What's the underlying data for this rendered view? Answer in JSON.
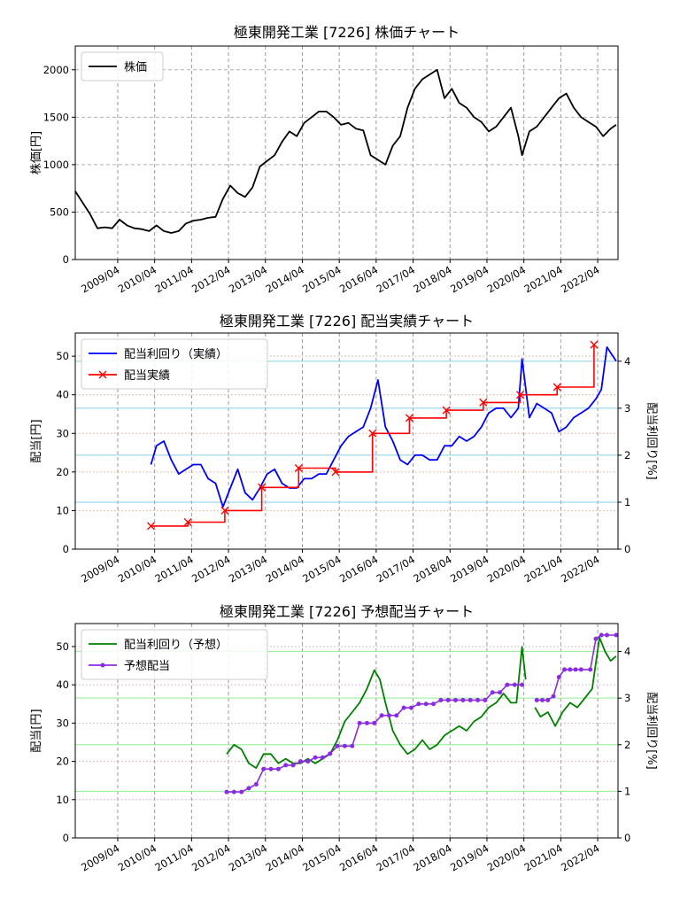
{
  "chart_data": [
    {
      "type": "line",
      "title": "極東開発工業 [7226]  株価チャート",
      "xlabel": "",
      "ylabel": "株価[円]",
      "ylim": [
        0,
        2250
      ],
      "xlim": [
        2008.1,
        2022.8
      ],
      "y_ticks": [
        0,
        500,
        1000,
        1500,
        2000
      ],
      "x_tick_labels": [
        "2009/04",
        "2010/04",
        "2011/04",
        "2012/04",
        "2013/04",
        "2014/04",
        "2015/04",
        "2016/04",
        "2017/04",
        "2018/04",
        "2019/04",
        "2020/04",
        "2021/04",
        "2022/04"
      ],
      "x_tick_values": [
        2009.25,
        2010.25,
        2011.25,
        2012.25,
        2013.25,
        2014.25,
        2015.25,
        2016.25,
        2017.25,
        2018.25,
        2019.25,
        2020.25,
        2021.25,
        2022.25
      ],
      "grid": true,
      "legend_position": "top-left",
      "series": [
        {
          "name": "株価",
          "color": "#000000",
          "x": [
            2008.1,
            2008.3,
            2008.5,
            2008.7,
            2008.9,
            2009.1,
            2009.3,
            2009.5,
            2009.7,
            2009.9,
            2010.1,
            2010.3,
            2010.5,
            2010.7,
            2010.9,
            2011.1,
            2011.3,
            2011.5,
            2011.7,
            2011.9,
            2012.1,
            2012.3,
            2012.5,
            2012.7,
            2012.9,
            2013.1,
            2013.3,
            2013.5,
            2013.7,
            2013.9,
            2014.1,
            2014.3,
            2014.5,
            2014.7,
            2014.9,
            2015.1,
            2015.3,
            2015.5,
            2015.7,
            2015.9,
            2016.1,
            2016.3,
            2016.5,
            2016.7,
            2016.9,
            2017.1,
            2017.3,
            2017.5,
            2017.7,
            2017.9,
            2018.1,
            2018.3,
            2018.5,
            2018.7,
            2018.9,
            2019.1,
            2019.3,
            2019.5,
            2019.7,
            2019.9,
            2020.1,
            2020.2,
            2020.4,
            2020.6,
            2020.8,
            2021.0,
            2021.2,
            2021.4,
            2021.6,
            2021.8,
            2022.0,
            2022.2,
            2022.4,
            2022.6,
            2022.75
          ],
          "values": [
            720,
            600,
            480,
            330,
            340,
            330,
            420,
            360,
            330,
            320,
            300,
            360,
            300,
            280,
            300,
            380,
            410,
            420,
            440,
            450,
            640,
            780,
            700,
            660,
            760,
            980,
            1040,
            1100,
            1240,
            1350,
            1300,
            1440,
            1500,
            1560,
            1560,
            1500,
            1420,
            1440,
            1380,
            1360,
            1100,
            1050,
            1000,
            1200,
            1300,
            1600,
            1800,
            1900,
            1950,
            2000,
            1700,
            1800,
            1650,
            1600,
            1500,
            1450,
            1350,
            1400,
            1500,
            1600,
            1300,
            1100,
            1350,
            1400,
            1500,
            1600,
            1700,
            1750,
            1600,
            1500,
            1450,
            1400,
            1300,
            1380,
            1420
          ]
        }
      ]
    },
    {
      "type": "line",
      "title": "極東開発工業 [7226]  配当実績チャート",
      "xlabel": "",
      "ylabel": "配当[円]",
      "y2label": "配当利回り[%]",
      "ylim": [
        0,
        56
      ],
      "y2lim": [
        0,
        4.6
      ],
      "xlim": [
        2008.1,
        2022.8
      ],
      "y_ticks": [
        0,
        10,
        20,
        30,
        40,
        50
      ],
      "y2_ticks": [
        0,
        1,
        2,
        3,
        4
      ],
      "x_tick_labels": [
        "2009/04",
        "2010/04",
        "2011/04",
        "2012/04",
        "2013/04",
        "2014/04",
        "2015/04",
        "2016/04",
        "2017/04",
        "2018/04",
        "2019/04",
        "2020/04",
        "2021/04",
        "2022/04"
      ],
      "x_tick_values": [
        2009.25,
        2010.25,
        2011.25,
        2012.25,
        2013.25,
        2014.25,
        2015.25,
        2016.25,
        2017.25,
        2018.25,
        2019.25,
        2020.25,
        2021.25,
        2022.25
      ],
      "grid": true,
      "legend_position": "top-left",
      "series": [
        {
          "name": "配当利回り（実績）",
          "axis": "right",
          "color": "#0000ff",
          "x": [
            2010.15,
            2010.3,
            2010.5,
            2010.7,
            2010.9,
            2011.1,
            2011.3,
            2011.5,
            2011.7,
            2011.9,
            2012.1,
            2012.3,
            2012.5,
            2012.7,
            2012.9,
            2013.1,
            2013.3,
            2013.5,
            2013.7,
            2013.9,
            2014.1,
            2014.3,
            2014.5,
            2014.7,
            2014.9,
            2015.1,
            2015.3,
            2015.5,
            2015.7,
            2015.9,
            2016.1,
            2016.3,
            2016.5,
            2016.7,
            2016.9,
            2017.1,
            2017.3,
            2017.5,
            2017.7,
            2017.9,
            2018.1,
            2018.3,
            2018.5,
            2018.7,
            2018.9,
            2019.1,
            2019.3,
            2019.5,
            2019.7,
            2019.9,
            2020.1,
            2020.2,
            2020.4,
            2020.6,
            2020.8,
            2021.0,
            2021.2,
            2021.4,
            2021.6,
            2021.8,
            2022.0,
            2022.2,
            2022.35,
            2022.5,
            2022.75
          ],
          "values": [
            1.8,
            2.2,
            2.3,
            1.9,
            1.6,
            1.7,
            1.8,
            1.8,
            1.5,
            1.4,
            0.9,
            1.3,
            1.7,
            1.2,
            1.05,
            1.3,
            1.6,
            1.7,
            1.4,
            1.3,
            1.3,
            1.5,
            1.5,
            1.6,
            1.6,
            1.9,
            2.2,
            2.4,
            2.5,
            2.6,
            3.0,
            3.6,
            2.6,
            2.3,
            1.9,
            1.8,
            2.0,
            2.0,
            1.9,
            1.9,
            2.2,
            2.2,
            2.4,
            2.3,
            2.4,
            2.6,
            2.9,
            3.0,
            3.0,
            2.8,
            3.0,
            4.05,
            2.8,
            3.1,
            3.0,
            2.9,
            2.5,
            2.6,
            2.8,
            2.9,
            3.0,
            3.2,
            3.4,
            4.3,
            4.0
          ]
        },
        {
          "name": "配当実績",
          "axis": "left",
          "color": "#ff0000",
          "marker": "x",
          "x": [
            2010.15,
            2011.15,
            2012.15,
            2013.15,
            2014.15,
            2015.15,
            2016.15,
            2017.15,
            2018.15,
            2019.15,
            2020.15,
            2021.15,
            2022.15
          ],
          "values": [
            6,
            7,
            10,
            16,
            21,
            20,
            30,
            34,
            36,
            38,
            40,
            42,
            53
          ]
        }
      ]
    },
    {
      "type": "line",
      "title": "極東開発工業 [7226]  予想配当チャート",
      "xlabel": "",
      "ylabel": "配当[円]",
      "y2label": "配当利回り[%]",
      "ylim": [
        0,
        56
      ],
      "y2lim": [
        0,
        4.6
      ],
      "xlim": [
        2008.1,
        2022.8
      ],
      "y_ticks": [
        0,
        10,
        20,
        30,
        40,
        50
      ],
      "y2_ticks": [
        0,
        1,
        2,
        3,
        4
      ],
      "x_tick_labels": [
        "2009/04",
        "2010/04",
        "2011/04",
        "2012/04",
        "2013/04",
        "2014/04",
        "2015/04",
        "2016/04",
        "2017/04",
        "2018/04",
        "2019/04",
        "2020/04",
        "2021/04",
        "2022/04"
      ],
      "x_tick_values": [
        2009.25,
        2010.25,
        2011.25,
        2012.25,
        2013.25,
        2014.25,
        2015.25,
        2016.25,
        2017.25,
        2018.25,
        2019.25,
        2020.25,
        2021.25,
        2022.25
      ],
      "grid": true,
      "legend_position": "top-left",
      "series": [
        {
          "name": "配当利回り（予想）",
          "axis": "right",
          "color": "#008000",
          "x": [
            2012.2,
            2012.4,
            2012.6,
            2012.8,
            2013.0,
            2013.2,
            2013.4,
            2013.6,
            2013.8,
            2014.0,
            2014.2,
            2014.4,
            2014.6,
            2014.8,
            2015.0,
            2015.2,
            2015.4,
            2015.6,
            2015.8,
            2016.0,
            2016.2,
            2016.35,
            2016.5,
            2016.7,
            2016.9,
            2017.1,
            2017.3,
            2017.5,
            2017.7,
            2017.9,
            2018.1,
            2018.3,
            2018.5,
            2018.7,
            2018.9,
            2019.1,
            2019.3,
            2019.5,
            2019.7,
            2019.9,
            2020.05,
            2020.2,
            2020.3
          ],
          "values": [
            1.8,
            2.0,
            1.9,
            1.6,
            1.5,
            1.8,
            1.8,
            1.6,
            1.7,
            1.6,
            1.6,
            1.7,
            1.6,
            1.7,
            1.8,
            2.1,
            2.5,
            2.7,
            2.9,
            3.2,
            3.6,
            3.4,
            2.9,
            2.3,
            2.0,
            1.8,
            1.9,
            2.1,
            1.9,
            2.0,
            2.2,
            2.3,
            2.4,
            2.3,
            2.5,
            2.6,
            2.8,
            2.9,
            3.1,
            2.9,
            2.9,
            4.1,
            3.4
          ]
        },
        {
          "name": "配当利回り（予想）",
          "axis": "right",
          "color": "#008000",
          "x": [
            2020.55,
            2020.7,
            2020.9,
            2021.1,
            2021.3,
            2021.5,
            2021.7,
            2021.9,
            2022.1,
            2022.3,
            2022.45,
            2022.6,
            2022.75
          ],
          "values": [
            2.8,
            2.6,
            2.7,
            2.4,
            2.7,
            2.9,
            2.8,
            3.0,
            3.2,
            4.3,
            4.0,
            3.8,
            3.9
          ]
        },
        {
          "name": "予想配当",
          "axis": "left",
          "color": "#8b2be2",
          "marker": "o",
          "x": [
            2012.2,
            2012.4,
            2012.6,
            2012.8,
            2013.0,
            2013.2,
            2013.4,
            2013.6,
            2013.8,
            2014.0,
            2014.2,
            2014.4,
            2014.6,
            2014.8,
            2015.0,
            2015.2,
            2015.4,
            2015.6,
            2015.8,
            2016.0,
            2016.2,
            2016.4,
            2016.6,
            2016.8,
            2017.0,
            2017.2,
            2017.4,
            2017.6,
            2017.8,
            2018.0,
            2018.2,
            2018.4,
            2018.6,
            2018.8,
            2019.0,
            2019.2,
            2019.4,
            2019.6,
            2019.8,
            2020.0,
            2020.2
          ],
          "values": [
            12,
            12,
            12,
            13,
            14,
            18,
            18,
            18,
            19,
            19,
            20,
            20,
            21,
            21,
            22,
            24,
            24,
            24,
            30,
            30,
            30,
            32,
            32,
            32,
            34,
            34,
            35,
            35,
            35,
            36,
            36,
            36,
            36,
            36,
            36,
            36,
            38,
            38,
            40,
            40,
            40
          ]
        },
        {
          "name": "予想配当",
          "axis": "left",
          "color": "#8b2be2",
          "marker": "o",
          "x": [
            2020.6,
            2020.75,
            2020.9,
            2021.05,
            2021.2,
            2021.35,
            2021.5,
            2021.65,
            2021.8,
            2022.05,
            2022.2,
            2022.35,
            2022.5,
            2022.75
          ],
          "values": [
            36,
            36,
            36,
            37,
            42,
            44,
            44,
            44,
            44,
            44,
            52,
            53,
            53,
            53
          ]
        }
      ]
    }
  ]
}
